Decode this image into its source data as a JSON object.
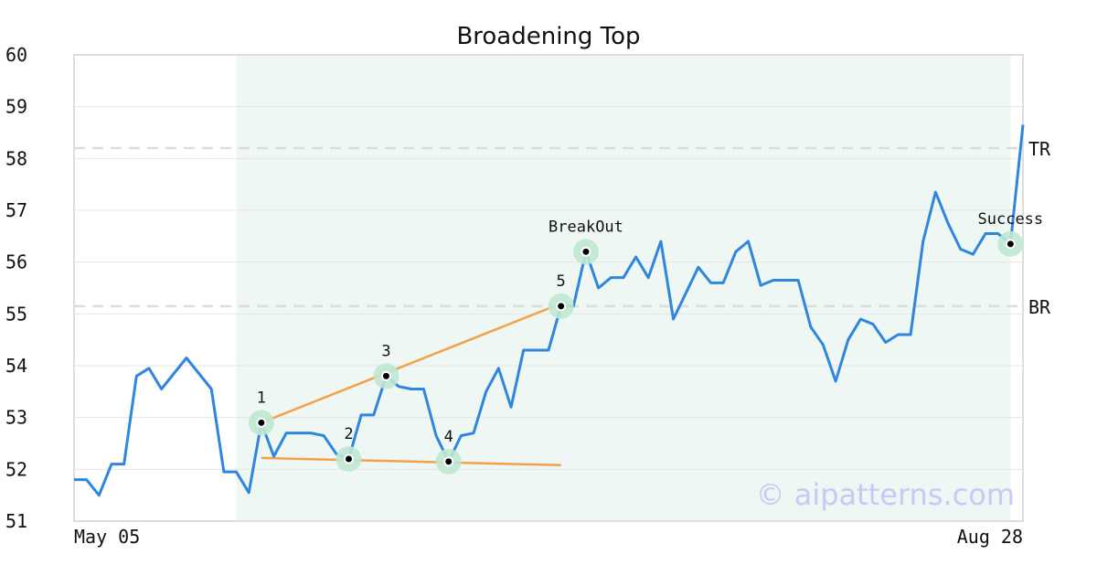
{
  "chart_data": {
    "type": "line",
    "title": "Broadening Top",
    "watermark": "© aipatterns.com",
    "ylim": [
      51,
      60
    ],
    "yticks": [
      51,
      52,
      53,
      54,
      55,
      56,
      57,
      58,
      59,
      60
    ],
    "x_tick_labels": [
      "May 05",
      "Aug 28"
    ],
    "series": [
      {
        "color": "#2e86de",
        "values": [
          51.8,
          51.8,
          51.5,
          52.1,
          52.1,
          53.8,
          53.95,
          53.55,
          53.85,
          54.15,
          53.85,
          53.55,
          51.95,
          51.95,
          51.55,
          52.9,
          52.25,
          52.7,
          52.7,
          52.7,
          52.65,
          52.3,
          52.2,
          53.05,
          53.05,
          53.8,
          53.6,
          53.55,
          53.55,
          52.65,
          52.15,
          52.65,
          52.7,
          53.5,
          53.95,
          53.2,
          54.3,
          54.3,
          54.3,
          55.15,
          55.15,
          56.2,
          55.5,
          55.7,
          55.7,
          56.1,
          55.7,
          56.4,
          54.9,
          55.4,
          55.9,
          55.6,
          55.6,
          56.2,
          56.4,
          55.55,
          55.65,
          55.65,
          55.65,
          54.75,
          54.4,
          53.7,
          54.5,
          54.9,
          54.8,
          54.45,
          54.6,
          54.6,
          56.4,
          57.35,
          56.75,
          56.25,
          56.15,
          56.55,
          56.55,
          56.35,
          58.65
        ]
      }
    ],
    "shaded_region": {
      "start_index": 13,
      "end_index": 75,
      "color": "#eef7f3"
    },
    "reference_lines": [
      {
        "label": "TR",
        "value": 58.2
      },
      {
        "label": "BR",
        "value": 55.15
      }
    ],
    "trend_lines": [
      {
        "color": "#f5a04a",
        "from": [
          15,
          52.9
        ],
        "to": [
          39,
          55.2
        ]
      },
      {
        "color": "#f5a04a",
        "from": [
          15,
          52.22
        ],
        "to": [
          39,
          52.08
        ]
      }
    ],
    "points": [
      {
        "label": "1",
        "index": 15,
        "value": 52.9
      },
      {
        "label": "2",
        "index": 22,
        "value": 52.2
      },
      {
        "label": "3",
        "index": 25,
        "value": 53.8
      },
      {
        "label": "4",
        "index": 30,
        "value": 52.15
      },
      {
        "label": "5",
        "index": 39,
        "value": 55.15
      },
      {
        "label": "BreakOut",
        "index": 41,
        "value": 56.2
      },
      {
        "label": "Success",
        "index": 75,
        "value": 56.35
      }
    ]
  }
}
